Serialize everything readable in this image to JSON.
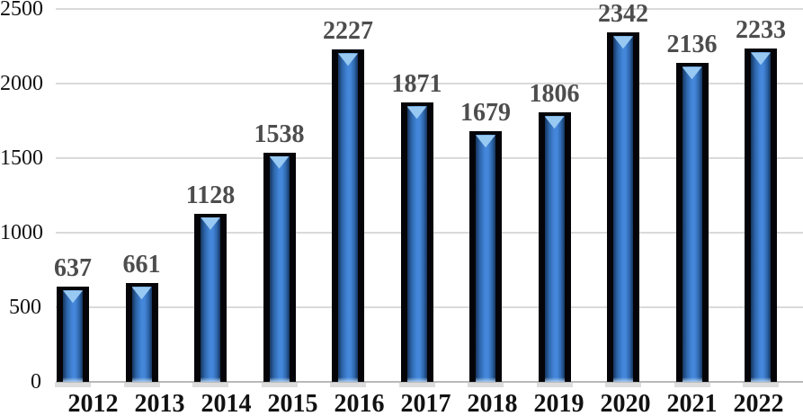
{
  "chart_data": {
    "type": "bar",
    "categories": [
      "2012",
      "2013",
      "2014",
      "2015",
      "2016",
      "2017",
      "2018",
      "2019",
      "2020",
      "2021",
      "2022"
    ],
    "values": [
      637,
      661,
      1128,
      1538,
      2227,
      1871,
      1679,
      1806,
      2342,
      2136,
      2233
    ],
    "xlabel": "",
    "ylabel": "",
    "ylim": [
      0,
      2500
    ],
    "yticks": [
      0,
      500,
      1000,
      1500,
      2000,
      2500
    ],
    "grid": true,
    "legend": false,
    "data_labels": true,
    "legend_position": "none"
  },
  "colors": {
    "background": "#ffffff",
    "gridline": "#dadada",
    "axis_line": "#b9b9b9",
    "tick_label": "#111111",
    "value_label": "#4d4d4d",
    "bar_border": "#050509",
    "bar_fill_center": "#4487da",
    "bar_fill_mid": "#2e67ad",
    "bar_fill_edge": "#16365f",
    "bar_highlight": "#98c9f2",
    "bar_shadow": "#c9c9c9"
  }
}
